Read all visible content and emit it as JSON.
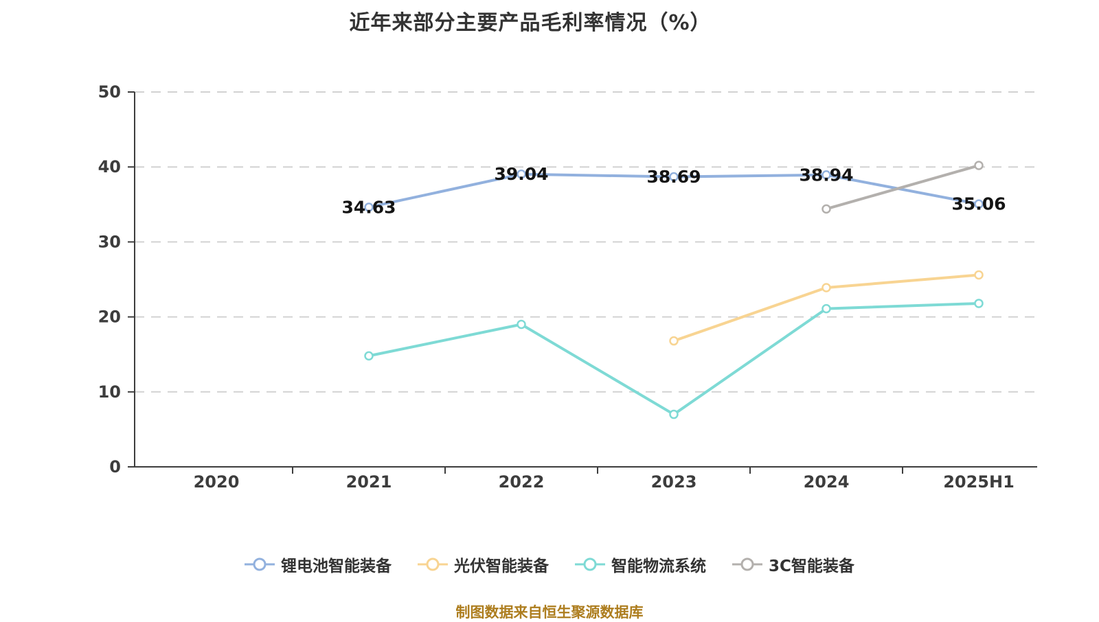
{
  "title": "近年来部分主要产品毛利率情况（%）",
  "footer": "制图数据来自恒生聚源数据库",
  "colors": {
    "title": "#333333",
    "axis": "#3d3d3d",
    "tick_label": "#3d3d3d",
    "grid": "#d2d2d2",
    "data_label": "#141414",
    "footer": "#ad7d1e",
    "background": "#ffffff",
    "legend_text": "#333333"
  },
  "chart_data": {
    "type": "line",
    "title": "近年来部分主要产品毛利率情况（%）",
    "categories": [
      "2020",
      "2021",
      "2022",
      "2023",
      "2024",
      "2025H1"
    ],
    "series": [
      {
        "name": "锂电池智能装备",
        "color": "#92b1de",
        "values": [
          null,
          34.63,
          39.04,
          38.69,
          38.94,
          35.06
        ],
        "labels": [
          "",
          "34.63",
          "39.04",
          "38.69",
          "38.94",
          "35.06"
        ],
        "show_labels": true
      },
      {
        "name": "光伏智能装备",
        "color": "#f8d492",
        "values": [
          null,
          null,
          null,
          16.8,
          23.9,
          25.6
        ],
        "labels": [
          "",
          "",
          "",
          "",
          "",
          ""
        ],
        "show_labels": false
      },
      {
        "name": "智能物流系统",
        "color": "#7edad5",
        "values": [
          null,
          14.8,
          19,
          7,
          21.1,
          21.8
        ],
        "labels": [
          "",
          "",
          "",
          "",
          "",
          ""
        ],
        "show_labels": false
      },
      {
        "name": "3C智能装备",
        "color": "#b3b0ad",
        "values": [
          null,
          null,
          null,
          null,
          34.4,
          40.2
        ],
        "labels": [
          "",
          "",
          "",
          "",
          "",
          ""
        ],
        "show_labels": false
      }
    ],
    "xlabel": "",
    "ylabel": "",
    "ylim": [
      0,
      50
    ],
    "yticks": [
      0,
      10,
      20,
      30,
      40,
      50
    ],
    "grid": true,
    "grid_style": "dashed",
    "legend_position": "bottom",
    "marker": "white-filled circle with colored ring"
  }
}
